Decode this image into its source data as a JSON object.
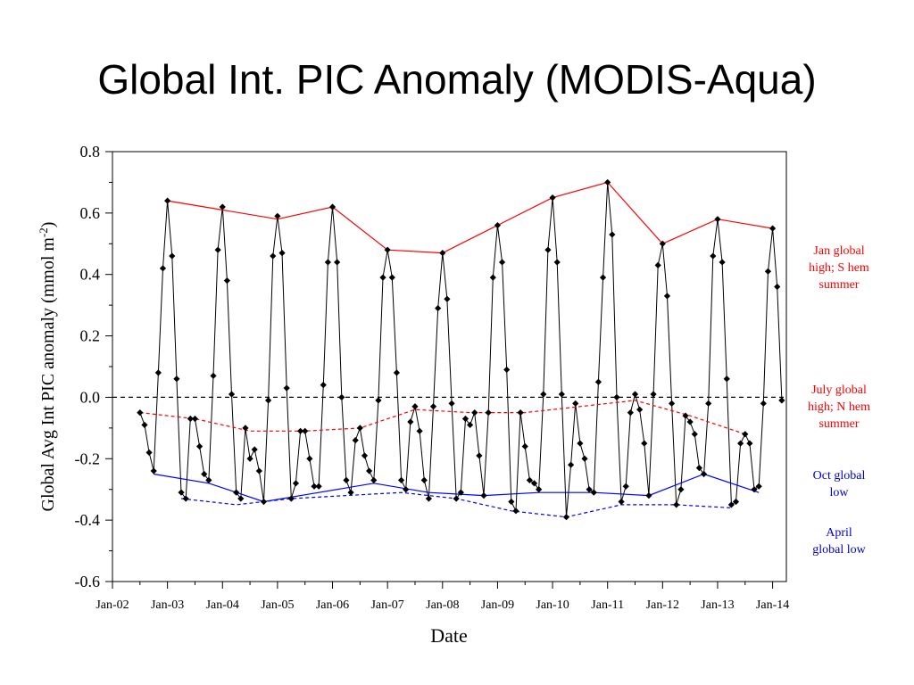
{
  "title": "Global Int. PIC Anomaly (MODIS-Aqua)",
  "annotations": [
    {
      "lines": [
        "Jan global",
        "high; S hem",
        "summer"
      ],
      "color": "#ff0000"
    },
    {
      "lines": [
        "July global",
        "high; N hem",
        "summer"
      ],
      "color": "#ff0000"
    },
    {
      "lines": [
        "Oct global",
        "low"
      ],
      "color": "#0000cc"
    },
    {
      "lines": [
        "April",
        "global low"
      ],
      "color": "#0000cc"
    }
  ],
  "chart_data": {
    "type": "line",
    "xlabel": "Date",
    "ylabel": "Global Avg Int PIC anomaly (mmol m",
    "ylabel_sup": "-2",
    "ylabel_end": ")",
    "x_tick_labels": [
      "Jan-02",
      "Jan-03",
      "Jan-04",
      "Jan-05",
      "Jan-06",
      "Jan-07",
      "Jan-08",
      "Jan-09",
      "Jan-10",
      "Jan-11",
      "Jan-12",
      "Jan-13",
      "Jan-14"
    ],
    "xlim": [
      "2002-01",
      "2014-04"
    ],
    "ylim": [
      -0.6,
      0.8
    ],
    "y_ticks": [
      "0.8",
      "0.6",
      "0.4",
      "0.2",
      "0.0",
      "-0.2",
      "-0.4",
      "-0.6"
    ],
    "colors": {
      "data": "#000000",
      "jan_high": "#ff0000",
      "july_high": "#ff0000",
      "oct_low": "#0000ff",
      "april_low": "#0000ff",
      "zero": "#000000"
    },
    "series": [
      {
        "role": "monthly",
        "x": [
          "2002-07",
          "2002-08",
          "2002-09",
          "2002-10",
          "2002-11",
          "2002-12",
          "2003-01",
          "2003-02",
          "2003-03",
          "2003-04",
          "2003-05",
          "2003-06",
          "2003-07",
          "2003-08",
          "2003-09",
          "2003-10",
          "2003-11",
          "2003-12",
          "2004-01",
          "2004-02",
          "2004-03",
          "2004-04",
          "2004-05",
          "2004-06",
          "2004-07",
          "2004-08",
          "2004-09",
          "2004-10",
          "2004-11",
          "2004-12",
          "2005-01",
          "2005-02",
          "2005-03",
          "2005-04",
          "2005-05",
          "2005-06",
          "2005-07",
          "2005-08",
          "2005-09",
          "2005-10",
          "2005-11",
          "2005-12",
          "2006-01",
          "2006-02",
          "2006-03",
          "2006-04",
          "2006-05",
          "2006-06",
          "2006-07",
          "2006-08",
          "2006-09",
          "2006-10",
          "2006-11",
          "2006-12",
          "2007-01",
          "2007-02",
          "2007-03",
          "2007-04",
          "2007-05",
          "2007-06",
          "2007-07",
          "2007-08",
          "2007-09",
          "2007-10",
          "2007-11",
          "2007-12",
          "2008-01",
          "2008-02",
          "2008-03",
          "2008-04",
          "2008-05",
          "2008-06",
          "2008-07",
          "2008-08",
          "2008-09",
          "2008-10",
          "2008-11",
          "2008-12",
          "2009-01",
          "2009-02",
          "2009-03",
          "2009-04",
          "2009-05",
          "2009-06",
          "2009-07",
          "2009-08",
          "2009-09",
          "2009-10",
          "2009-11",
          "2009-12",
          "2010-01",
          "2010-02",
          "2010-03",
          "2010-04",
          "2010-05",
          "2010-06",
          "2010-07",
          "2010-08",
          "2010-09",
          "2010-10",
          "2010-11",
          "2010-12",
          "2011-01",
          "2011-02",
          "2011-03",
          "2011-04",
          "2011-05",
          "2011-06",
          "2011-07",
          "2011-08",
          "2011-09",
          "2011-10",
          "2011-11",
          "2011-12",
          "2012-01",
          "2012-02",
          "2012-03",
          "2012-04",
          "2012-05",
          "2012-06",
          "2012-07",
          "2012-08",
          "2012-09",
          "2012-10",
          "2012-11",
          "2012-12",
          "2013-01",
          "2013-02",
          "2013-03",
          "2013-04",
          "2013-05",
          "2013-06",
          "2013-07",
          "2013-08",
          "2013-09",
          "2013-10",
          "2013-11",
          "2013-12",
          "2014-01",
          "2014-02",
          "2014-03"
        ],
        "values": [
          -0.05,
          -0.09,
          -0.18,
          -0.24,
          0.08,
          0.42,
          0.64,
          0.46,
          0.06,
          -0.31,
          -0.33,
          -0.07,
          -0.07,
          -0.16,
          -0.25,
          -0.27,
          0.07,
          0.48,
          0.62,
          0.38,
          0.01,
          -0.31,
          -0.33,
          -0.1,
          -0.2,
          -0.17,
          -0.24,
          -0.34,
          -0.01,
          0.46,
          0.59,
          0.47,
          0.03,
          -0.33,
          -0.28,
          -0.11,
          -0.11,
          -0.2,
          -0.29,
          -0.29,
          0.04,
          0.44,
          0.62,
          0.44,
          0.0,
          -0.27,
          -0.31,
          -0.14,
          -0.1,
          -0.19,
          -0.24,
          -0.27,
          -0.01,
          0.39,
          0.48,
          0.39,
          0.08,
          -0.27,
          -0.3,
          -0.08,
          -0.03,
          -0.11,
          -0.27,
          -0.33,
          -0.03,
          0.29,
          0.47,
          0.32,
          -0.02,
          -0.33,
          -0.31,
          -0.07,
          -0.09,
          -0.05,
          -0.19,
          -0.32,
          -0.05,
          0.39,
          0.56,
          0.44,
          0.09,
          -0.34,
          -0.37,
          -0.05,
          -0.16,
          -0.27,
          -0.28,
          -0.3,
          0.01,
          0.48,
          0.65,
          0.44,
          0.01,
          -0.39,
          -0.22,
          -0.02,
          -0.15,
          -0.2,
          -0.3,
          -0.31,
          0.05,
          0.39,
          0.7,
          0.53,
          0.0,
          -0.34,
          -0.29,
          -0.05,
          0.01,
          -0.04,
          -0.15,
          -0.32,
          0.01,
          0.43,
          0.5,
          0.33,
          -0.02,
          -0.35,
          -0.3,
          -0.06,
          -0.08,
          -0.12,
          -0.23,
          -0.25,
          -0.02,
          0.46,
          0.58,
          0.44,
          0.06,
          -0.35,
          -0.34,
          -0.15,
          -0.12,
          -0.15,
          -0.3,
          -0.29,
          -0.02,
          0.41,
          0.55,
          0.36,
          -0.01
        ]
      },
      {
        "role": "jan_high",
        "style": "solid",
        "x": [
          "2003-01",
          "2004-01",
          "2005-01",
          "2006-01",
          "2007-01",
          "2008-01",
          "2009-01",
          "2010-01",
          "2011-01",
          "2012-01",
          "2013-01",
          "2014-01"
        ],
        "values": [
          0.64,
          0.61,
          0.58,
          0.62,
          0.48,
          0.47,
          0.56,
          0.65,
          0.7,
          0.5,
          0.58,
          0.55
        ]
      },
      {
        "role": "july_high",
        "style": "dashed",
        "x": [
          "2002-07",
          "2003-07",
          "2004-07",
          "2005-07",
          "2006-07",
          "2007-07",
          "2008-07",
          "2009-07",
          "2010-07",
          "2011-07",
          "2012-07",
          "2013-07"
        ],
        "values": [
          -0.05,
          -0.07,
          -0.11,
          -0.11,
          -0.1,
          -0.04,
          -0.05,
          -0.05,
          -0.03,
          -0.01,
          -0.06,
          -0.12
        ]
      },
      {
        "role": "oct_low",
        "style": "solid",
        "x": [
          "2002-10",
          "2003-10",
          "2004-10",
          "2005-10",
          "2006-10",
          "2007-10",
          "2008-10",
          "2009-10",
          "2010-10",
          "2011-10",
          "2012-10",
          "2013-10"
        ],
        "values": [
          -0.25,
          -0.28,
          -0.34,
          -0.31,
          -0.28,
          -0.31,
          -0.32,
          -0.31,
          -0.31,
          -0.32,
          -0.25,
          -0.31
        ]
      },
      {
        "role": "april_low",
        "style": "dashed",
        "x": [
          "2003-04",
          "2004-04",
          "2005-04",
          "2006-04",
          "2007-04",
          "2008-04",
          "2009-04",
          "2010-04",
          "2011-04",
          "2012-04",
          "2013-04"
        ],
        "values": [
          -0.33,
          -0.35,
          -0.33,
          -0.32,
          -0.31,
          -0.33,
          -0.37,
          -0.39,
          -0.35,
          -0.35,
          -0.36
        ]
      },
      {
        "role": "zero",
        "style": "dashed",
        "x": [
          "2002-01",
          "2014-04"
        ],
        "values": [
          0.0,
          0.0
        ]
      }
    ]
  }
}
